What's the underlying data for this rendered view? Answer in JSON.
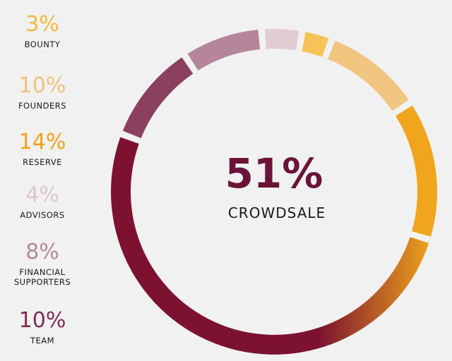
{
  "chart_data": {
    "type": "pie",
    "style": "donut",
    "center": {
      "value": "51%",
      "label": "CROWDSALE"
    },
    "series": [
      {
        "name": "BOUNTY",
        "display": "3%",
        "value": 3,
        "color": "#f7c257",
        "legend_color": "#f2b93c"
      },
      {
        "name": "FOUNDERS",
        "display": "10%",
        "value": 10,
        "color": "#f0c580",
        "legend_color": "#f0c27e"
      },
      {
        "name": "RESERVE",
        "display": "14%",
        "value": 14,
        "color": "#f0a51c",
        "legend_color": "#f0a21b"
      },
      {
        "name": "CROWDSALE",
        "display": "51%",
        "value": 51,
        "color": "#7d1230",
        "gradient_from": "#f0a51c"
      },
      {
        "name": "TEAM",
        "display": "10%",
        "value": 10,
        "color": "#8c4060",
        "legend_color": "#7d2e52"
      },
      {
        "name": "FINANCIAL\nSUPPORTERS",
        "display": "8%",
        "value": 8,
        "color": "#b58599",
        "legend_color": "#b7889a"
      },
      {
        "name": "ADVISORS",
        "display": "4%",
        "value": 4,
        "color": "#e2ccd4",
        "legend_color": "#dcc6d0"
      }
    ],
    "legend_order": [
      0,
      1,
      2,
      6,
      5,
      4
    ]
  }
}
